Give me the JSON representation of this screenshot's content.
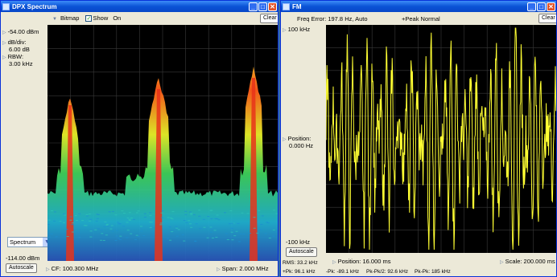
{
  "left": {
    "title": "DPX Spectrum",
    "bitmap_label": "Bitmap",
    "show_label": "Show",
    "on_label": "On",
    "clear_label": "Clear",
    "ref_level": "-54.00 dBm",
    "db_div_label": "dB/div:",
    "db_div_value": "6.00 dB",
    "rbw_label": "RBW:",
    "rbw_value": "3.00 kHz",
    "bottom_level": "-114.00 dBm",
    "view_select": "Spectrum",
    "autoscale_label": "Autoscale",
    "cf": "CF: 100.300 MHz",
    "span": "Span: 2.000 MHz"
  },
  "right": {
    "title": "FM",
    "freq_error": "Freq Error: 197.8 Hz, Auto",
    "peak_mode": "+Peak Normal",
    "clear_label": "Clear",
    "top_level": "100 kHz",
    "position_label": "Position:",
    "position_value": "0.000 Hz",
    "bottom_level": "-100 kHz",
    "autoscale_label": "Autoscale",
    "position_time": "Position: 16.000 ms",
    "scale": "Scale: 200.000 ms",
    "rms": "RMS: 33.2 kHz",
    "pk_pos": "+Pk: 96.1 kHz",
    "pk_neg": "-Pk: -89.1 kHz",
    "pk_pk_half": "Pk-Pk/2: 92.6 kHz",
    "pk_pk": "Pk-Pk: 185 kHz"
  },
  "colors": {
    "spectrum_hot": "#ff3a1a",
    "spectrum_warm": "#ffb020",
    "spectrum_mid": "#36d45a",
    "spectrum_cool": "#1aa7d8",
    "fm_trace": "#ffff33"
  }
}
